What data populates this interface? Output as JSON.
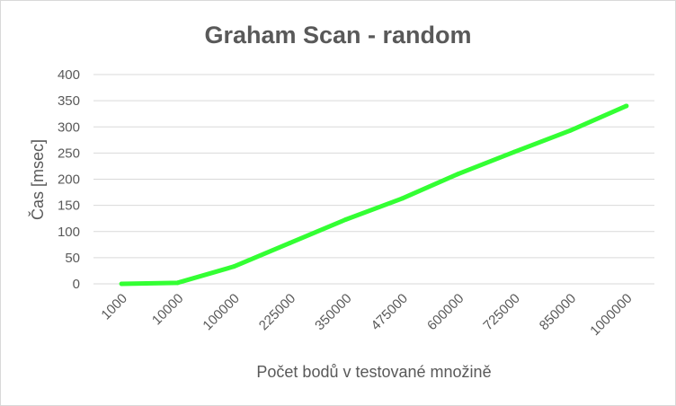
{
  "chart_data": {
    "type": "line",
    "title": "Graham Scan - random",
    "xlabel": "Počet bodů v testované množině",
    "ylabel": "Čas [msec]",
    "categories": [
      "1000",
      "10000",
      "100000",
      "225000",
      "350000",
      "475000",
      "600000",
      "725000",
      "850000",
      "1000000"
    ],
    "series": [
      {
        "values": [
          0,
          2,
          33,
          78,
          123,
          163,
          210,
          252,
          293,
          340
        ],
        "color": "#33ff33"
      }
    ],
    "ylim": [
      0,
      400
    ],
    "yticks": [
      "0",
      "50",
      "100",
      "150",
      "200",
      "250",
      "300",
      "350",
      "400"
    ],
    "grid": true,
    "legend": "none"
  }
}
